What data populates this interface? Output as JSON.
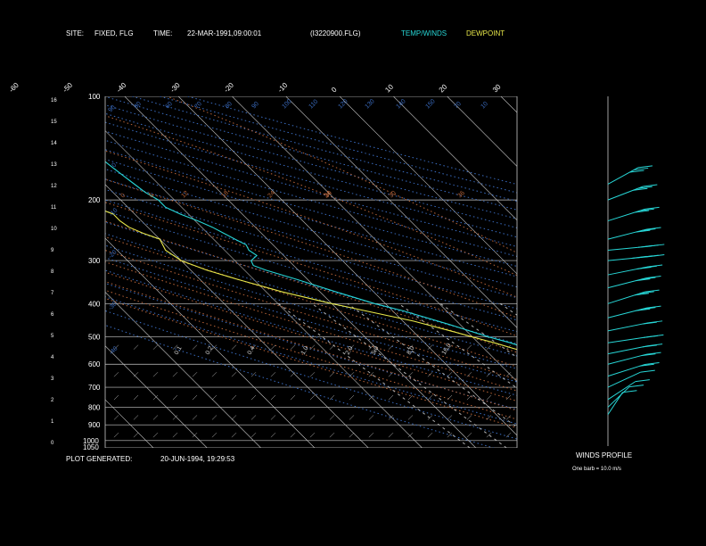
{
  "header": {
    "site_label": "SITE:",
    "site_value": "FIXED, FLG",
    "time_label": "TIME:",
    "time_value": "22-MAR-1991,09:00:01",
    "file_name": "(I3220900.FLG)",
    "legend_temp": "TEMP/WINDS",
    "legend_dew": "DEWPOINT"
  },
  "footer": {
    "plot_generated_label": "PLOT GENERATED:",
    "plot_generated_value": "20-JUN-1994, 19:29:53"
  },
  "winds_profile": {
    "title": "WINDS PROFILE",
    "note": "One barb = 10.0 m/s"
  },
  "colors": {
    "temp": "#27d6d6",
    "dewpoint": "#e8e84a",
    "isotherm": "#c8c8c8",
    "isobar": "#c8c8c8",
    "dry_adiabat": "#3a6cc0",
    "moist_adiabat": "#b86438",
    "mixing_ratio": "#b0b0b0",
    "axis": "#c8c8c8",
    "text": "#ffffff"
  },
  "chart_data": {
    "type": "line",
    "pressure_ticks": [
      "100",
      "200",
      "300",
      "400",
      "500",
      "600",
      "700",
      "800",
      "900",
      "1000",
      "1050"
    ],
    "height_ticks": [
      "16",
      "15",
      "14",
      "13",
      "12",
      "11",
      "10",
      "9",
      "8",
      "7",
      "6",
      "5",
      "4",
      "3",
      "2",
      "1",
      "0"
    ],
    "temp_ticks": [
      "-110",
      "-100",
      "-90",
      "-80",
      "-70",
      "-60",
      "-50",
      "-40",
      "-30",
      "-20",
      "-10",
      "0",
      "10",
      "20",
      "30"
    ],
    "dry_adiabat_labels": [
      "90",
      "80",
      "60",
      "70",
      "80",
      "90",
      "100",
      "110",
      "120",
      "130",
      "140",
      "150",
      "70",
      "10",
      "0",
      "-10",
      "-20",
      "-30",
      "-40"
    ],
    "moist_adiabat_labels": [
      "0",
      "6",
      "12",
      "18",
      "24",
      "30",
      "24",
      "30",
      "36"
    ],
    "mixing_ratio_labels": [
      "0.1",
      "0.2",
      "0.4",
      "1.0",
      "2.0",
      "5.0",
      "8.0",
      "16.0"
    ],
    "ylim_pressure": [
      1050,
      100
    ],
    "series": [
      {
        "key": "temp",
        "points": [
          {
            "p": 850,
            "t": 6.5
          },
          {
            "p": 845,
            "t": 6.8
          },
          {
            "p": 840,
            "t": 6.0
          },
          {
            "p": 820,
            "t": 5.5
          },
          {
            "p": 800,
            "t": 5.0
          },
          {
            "p": 780,
            "t": 3.8
          },
          {
            "p": 760,
            "t": 3.5
          },
          {
            "p": 750,
            "t": 3.0
          },
          {
            "p": 720,
            "t": 0.5
          },
          {
            "p": 700,
            "t": -1.0
          },
          {
            "p": 680,
            "t": -3.0
          },
          {
            "p": 650,
            "t": -4.5
          },
          {
            "p": 620,
            "t": -6.0
          },
          {
            "p": 600,
            "t": -7.0
          },
          {
            "p": 580,
            "t": -7.5
          },
          {
            "p": 560,
            "t": -9.0
          },
          {
            "p": 540,
            "t": -12.0
          },
          {
            "p": 520,
            "t": -14.0
          },
          {
            "p": 500,
            "t": -17.0
          },
          {
            "p": 460,
            "t": -22.0
          },
          {
            "p": 420,
            "t": -28.0
          },
          {
            "p": 400,
            "t": -32.0
          },
          {
            "p": 370,
            "t": -37.0
          },
          {
            "p": 340,
            "t": -42.0
          },
          {
            "p": 320,
            "t": -46.0
          },
          {
            "p": 310,
            "t": -47.5
          },
          {
            "p": 300,
            "t": -47.0
          },
          {
            "p": 290,
            "t": -45.0
          },
          {
            "p": 280,
            "t": -45.5
          },
          {
            "p": 270,
            "t": -45.0
          },
          {
            "p": 260,
            "t": -46.0
          },
          {
            "p": 250,
            "t": -47.0
          },
          {
            "p": 240,
            "t": -48.0
          },
          {
            "p": 230,
            "t": -49.5
          },
          {
            "p": 220,
            "t": -51.5
          },
          {
            "p": 210,
            "t": -53.0
          },
          {
            "p": 200,
            "t": -53.0
          },
          {
            "p": 190,
            "t": -54.0
          },
          {
            "p": 180,
            "t": -54.5
          },
          {
            "p": 170,
            "t": -55.0
          },
          {
            "p": 160,
            "t": -55.5
          },
          {
            "p": 150,
            "t": -56.0
          }
        ]
      },
      {
        "key": "dewpoint",
        "points": [
          {
            "p": 850,
            "t": 6.0
          },
          {
            "p": 840,
            "t": 5.2
          },
          {
            "p": 820,
            "t": 4.8
          },
          {
            "p": 800,
            "t": 4.0
          },
          {
            "p": 780,
            "t": 2.0
          },
          {
            "p": 760,
            "t": 1.5
          },
          {
            "p": 740,
            "t": 0.5
          },
          {
            "p": 720,
            "t": -1.0
          },
          {
            "p": 700,
            "t": -3.0
          },
          {
            "p": 680,
            "t": -5.0
          },
          {
            "p": 660,
            "t": -7.0
          },
          {
            "p": 640,
            "t": -7.5
          },
          {
            "p": 620,
            "t": -8.5
          },
          {
            "p": 600,
            "t": -10.0
          },
          {
            "p": 580,
            "t": -11.0
          },
          {
            "p": 560,
            "t": -12.0
          },
          {
            "p": 540,
            "t": -14.5
          },
          {
            "p": 520,
            "t": -17.0
          },
          {
            "p": 500,
            "t": -20.0
          },
          {
            "p": 480,
            "t": -23.0
          },
          {
            "p": 450,
            "t": -28.0
          },
          {
            "p": 420,
            "t": -35.0
          },
          {
            "p": 400,
            "t": -40.0
          },
          {
            "p": 370,
            "t": -47.0
          },
          {
            "p": 340,
            "t": -53.0
          },
          {
            "p": 320,
            "t": -57.0
          },
          {
            "p": 300,
            "t": -60.0
          },
          {
            "p": 280,
            "t": -61.0
          },
          {
            "p": 260,
            "t": -60.0
          },
          {
            "p": 250,
            "t": -62.0
          },
          {
            "p": 240,
            "t": -63.5
          },
          {
            "p": 230,
            "t": -64.0
          },
          {
            "p": 220,
            "t": -64.0
          },
          {
            "p": 210,
            "t": -66.0
          },
          {
            "p": 200,
            "t": -68.0
          },
          {
            "p": 195,
            "t": -69.0
          }
        ]
      }
    ],
    "winds": [
      {
        "p": 180,
        "dir": 225,
        "speed": 30
      },
      {
        "p": 200,
        "dir": 235,
        "speed": 25
      },
      {
        "p": 230,
        "dir": 240,
        "speed": 30
      },
      {
        "p": 260,
        "dir": 245,
        "speed": 30
      },
      {
        "p": 280,
        "dir": 260,
        "speed": 30
      },
      {
        "p": 300,
        "dir": 260,
        "speed": 40
      },
      {
        "p": 330,
        "dir": 250,
        "speed": 30
      },
      {
        "p": 360,
        "dir": 245,
        "speed": 25
      },
      {
        "p": 400,
        "dir": 240,
        "speed": 25
      },
      {
        "p": 440,
        "dir": 245,
        "speed": 25
      },
      {
        "p": 480,
        "dir": 250,
        "speed": 20
      },
      {
        "p": 520,
        "dir": 255,
        "speed": 20
      },
      {
        "p": 560,
        "dir": 250,
        "speed": 20
      },
      {
        "p": 600,
        "dir": 245,
        "speed": 15
      },
      {
        "p": 650,
        "dir": 240,
        "speed": 15
      },
      {
        "p": 700,
        "dir": 230,
        "speed": 10
      },
      {
        "p": 760,
        "dir": 220,
        "speed": 10
      },
      {
        "p": 800,
        "dir": 210,
        "speed": 5
      },
      {
        "p": 840,
        "dir": 200,
        "speed": 5
      }
    ]
  }
}
